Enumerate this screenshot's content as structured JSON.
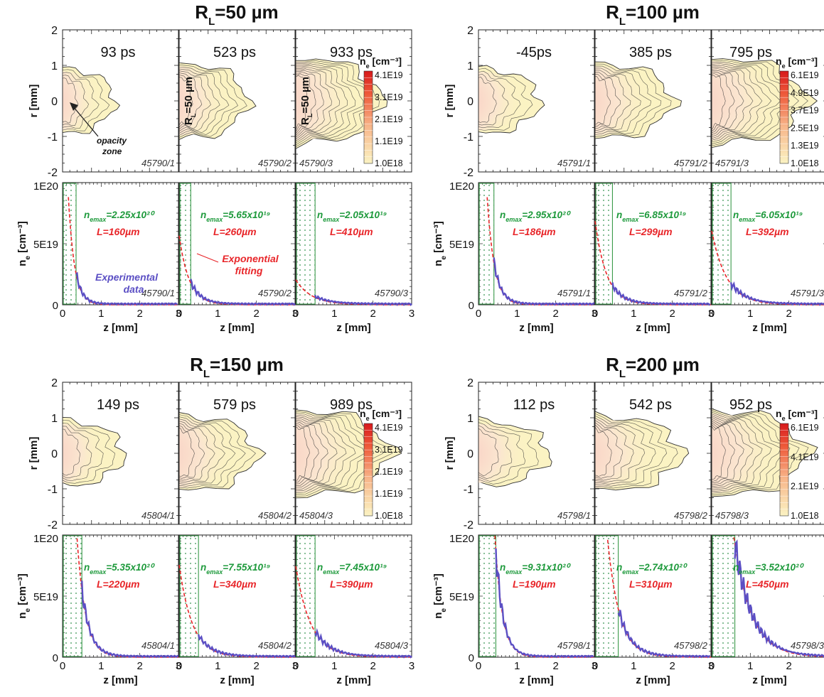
{
  "chart_data": {
    "type": "line",
    "axes": {
      "contour": {
        "ylabel": "r [mm]",
        "ylim": [
          -2,
          2
        ],
        "yticks": [
          "2",
          "1",
          "0",
          "-1",
          "-2"
        ]
      },
      "profile": {
        "ylabel": "n_e [cm⁻³]",
        "ylim": [
          0,
          1e+20
        ],
        "yticks": [
          "1E20",
          "5E19",
          "0"
        ],
        "xlabel": "z [mm]",
        "xlim": [
          0,
          3
        ],
        "xticks": [
          "0",
          "1",
          "2",
          "3"
        ]
      }
    },
    "annotations": {
      "opacity": "opacity zone",
      "experimental": "Experimental data",
      "exponential": "Exponential fitting",
      "rl_vertical": "R_L=50 µm",
      "colorbar_label": "n_e [cm⁻³]",
      "nemax_prefix": "n_e_max=",
      "l_prefix": "L="
    },
    "colors": {
      "experimental": "#5b4fc4",
      "fit": "#e8262a",
      "nemax_text": "#1e9a3c",
      "l_text": "#e8262a",
      "plasma_fill": "#fbf3c3",
      "opacity_box": "#3a9a4a"
    },
    "groups": [
      {
        "title": "R_L=50 µm",
        "colorbar": [
          "4.1E19",
          "3.1E19",
          "2.1E19",
          "1.1E19",
          "1.0E18"
        ],
        "panels": [
          {
            "time": "93 ps",
            "shot": "45790/1",
            "nemax": "2.25x10²⁰",
            "L": "160µm",
            "L_um": 160,
            "opacity_mm": 0.35
          },
          {
            "time": "523 ps",
            "shot": "45790/2",
            "nemax": "5.65x10¹⁹",
            "L": "260µm",
            "L_um": 260,
            "opacity_mm": 0.3
          },
          {
            "time": "933 ps",
            "shot": "45790/3",
            "nemax": "2.05x10¹⁹",
            "L": "410µm",
            "L_um": 410,
            "opacity_mm": 0.5
          }
        ]
      },
      {
        "title": "R_L=100 µm",
        "colorbar": [
          "6.1E19",
          "4.9E19",
          "3.7E19",
          "2.5E19",
          "1.3E19",
          "1.0E18"
        ],
        "panels": [
          {
            "time": "-45ps",
            "shot": "45791/1",
            "nemax": "2.95x10²⁰",
            "L": "186µm",
            "L_um": 186,
            "opacity_mm": 0.4
          },
          {
            "time": "385 ps",
            "shot": "45791/2",
            "nemax": "6.85x10¹⁹",
            "L": "299µm",
            "L_um": 299,
            "opacity_mm": 0.45
          },
          {
            "time": "795 ps",
            "shot": "45791/3",
            "nemax": "6.05x10¹⁹",
            "L": "392µm",
            "L_um": 392,
            "opacity_mm": 0.5
          }
        ]
      },
      {
        "title": "R_L=150 µm",
        "colorbar": [
          "4.1E19",
          "3.1E19",
          "2.1E19",
          "1.1E19",
          "1.0E18"
        ],
        "panels": [
          {
            "time": "149 ps",
            "shot": "45804/1",
            "nemax": "5.35x10²⁰",
            "L": "220µm",
            "L_um": 220,
            "opacity_mm": 0.5
          },
          {
            "time": "579 ps",
            "shot": "45804/2",
            "nemax": "7.55x10¹⁹",
            "L": "340µm",
            "L_um": 340,
            "opacity_mm": 0.5
          },
          {
            "time": "989 ps",
            "shot": "45804/3",
            "nemax": "7.45x10¹⁹",
            "L": "390µm",
            "L_um": 390,
            "opacity_mm": 0.5
          }
        ]
      },
      {
        "title": "R_L=200 µm",
        "colorbar": [
          "6.1E19",
          "4.1E19",
          "2.1E19",
          "1.0E18"
        ],
        "panels": [
          {
            "time": "112 ps",
            "shot": "45798/1",
            "nemax": "9.31x10²⁰",
            "L": "190µm",
            "L_um": 190,
            "opacity_mm": 0.45
          },
          {
            "time": "542 ps",
            "shot": "45798/2",
            "nemax": "2.74x10²⁰",
            "L": "310µm",
            "L_um": 310,
            "opacity_mm": 0.6
          },
          {
            "time": "952 ps",
            "shot": "45798/3",
            "nemax": "3.52x10²⁰",
            "L": "450µm",
            "L_um": 450,
            "opacity_mm": 0.6
          }
        ]
      }
    ]
  }
}
